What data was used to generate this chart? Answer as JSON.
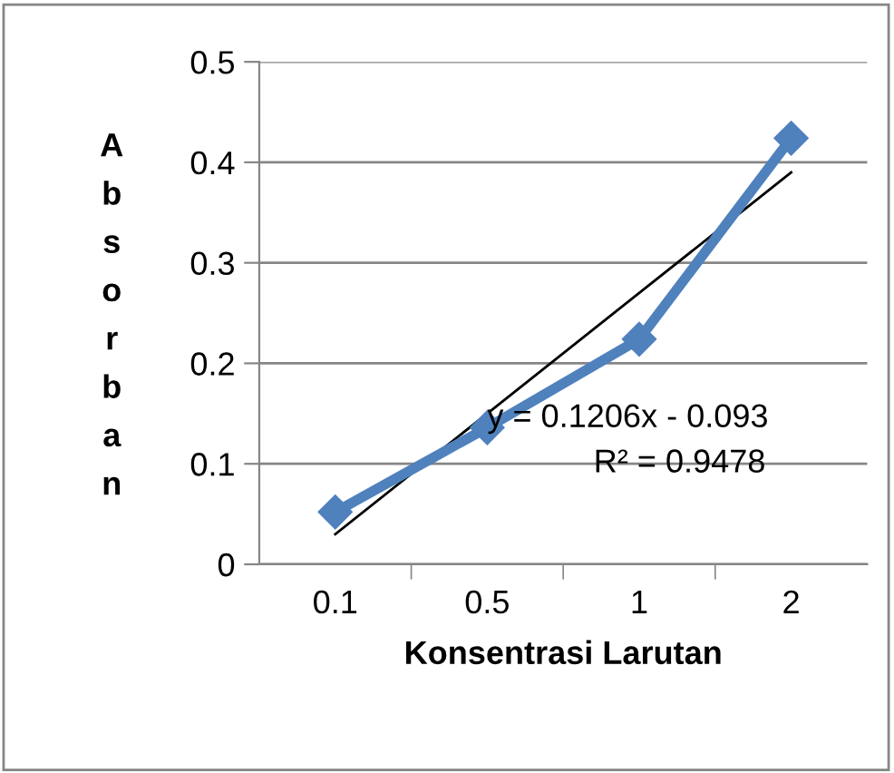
{
  "chart_data": {
    "type": "line",
    "xlabel": "Konsentrasi Larutan",
    "ylabel": "Absorban",
    "categories": [
      "0.1",
      "0.5",
      "1",
      "2"
    ],
    "series": [
      {
        "color": "#4f81bd",
        "values": [
          0.052,
          0.136,
          0.224,
          0.424
        ],
        "marker": "diamond",
        "line_style": "solid"
      },
      {
        "color": "#000000",
        "values": [
          0.03,
          0.15,
          0.27,
          0.39
        ],
        "marker": "none",
        "line_style": "solid"
      }
    ],
    "annotations": [
      "y = 0.1206x - 0.093",
      "R² = 0.9478"
    ],
    "ylim": [
      0,
      0.5
    ],
    "yticks": [
      0,
      0.1,
      0.2,
      0.3,
      0.4,
      0.5
    ],
    "grid": "y",
    "legend": false
  }
}
